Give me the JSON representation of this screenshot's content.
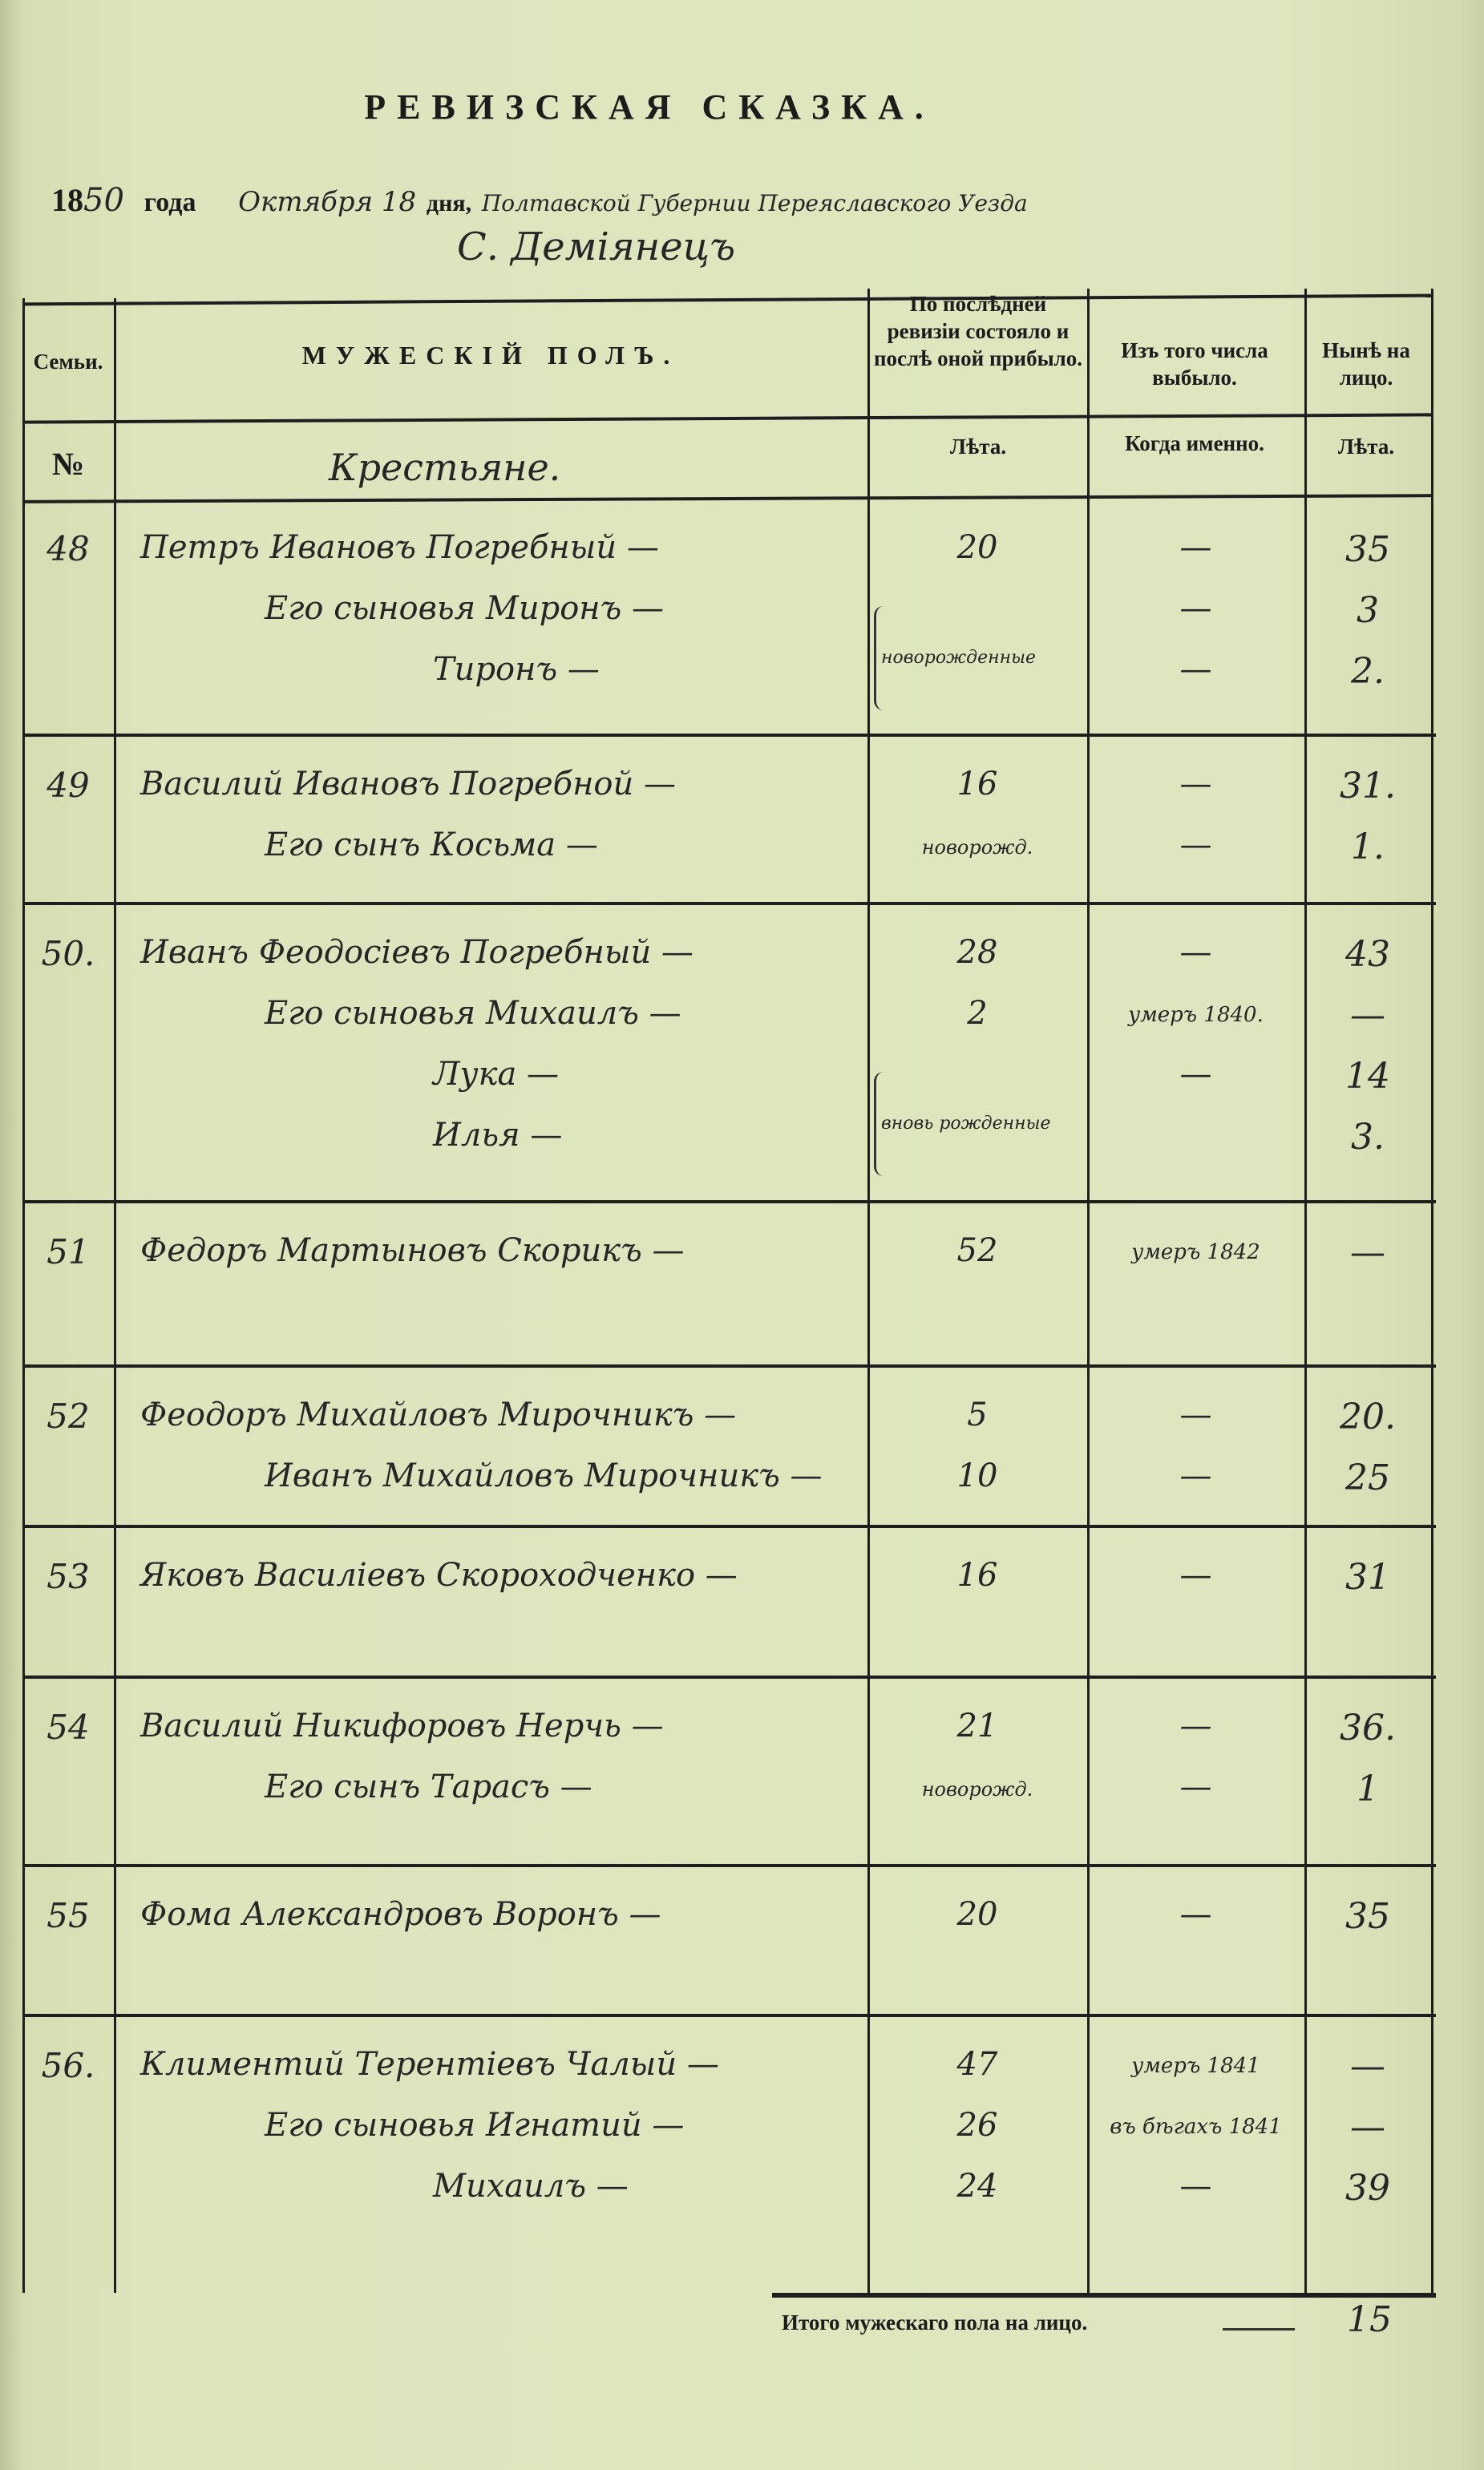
{
  "document": {
    "title": "РЕВИЗСКАЯ СКАЗКА.",
    "year_prefix": "18",
    "year_suffix": "50",
    "year_word": "года",
    "date_text": "Октября 18",
    "day_word": "дня,",
    "location_text": "Полтавской Губернии Переяславского Уезда",
    "village": "С. Демiянецъ"
  },
  "table": {
    "headers": {
      "family": "Семьи.",
      "male": "МУЖЕСКIЙ ПОЛЪ.",
      "prev": "По послѣдней ревизіи состояло и послѣ оной прибыло.",
      "removed": "Изъ того числа выбыло.",
      "now": "Нынѣ на лицо."
    },
    "subheaders": {
      "no": "№",
      "category": "Крестьяне.",
      "prev": "Лѣта.",
      "removed": "Когда именно.",
      "now": "Лѣта."
    },
    "families": [
      {
        "no": "48",
        "note": "новорожденные",
        "people": [
          {
            "name": "Петръ Ивановъ Погребный —",
            "prev": "20",
            "removed": "—",
            "now": "35",
            "indent": 0
          },
          {
            "name": "Его сыновья Миронъ —",
            "prev": "",
            "removed": "—",
            "now": "3",
            "indent": 1
          },
          {
            "name": "Тиронъ —",
            "prev": "",
            "removed": "—",
            "now": "2.",
            "indent": 2
          }
        ]
      },
      {
        "no": "49",
        "note": "",
        "people": [
          {
            "name": "Василий Ивановъ Погребной —",
            "prev": "16",
            "removed": "—",
            "now": "31.",
            "indent": 0
          },
          {
            "name": "Его сынъ Косьма —",
            "prev": "новорожд.",
            "removed": "—",
            "now": "1.",
            "indent": 1
          }
        ]
      },
      {
        "no": "50.",
        "note": "вновь рожденные",
        "people": [
          {
            "name": "Иванъ Феодосiевъ Погребный —",
            "prev": "28",
            "removed": "—",
            "now": "43",
            "indent": 0
          },
          {
            "name": "Его сыновья Михаилъ —",
            "prev": "2",
            "removed": "умеръ 1840.",
            "now": "—",
            "indent": 1
          },
          {
            "name": "Лука —",
            "prev": "",
            "removed": "—",
            "now": "14",
            "indent": 2
          },
          {
            "name": "Илья —",
            "prev": "",
            "removed": "",
            "now": "3.",
            "indent": 2
          }
        ]
      },
      {
        "no": "51",
        "note": "",
        "people": [
          {
            "name": "Федоръ Мартыновъ Скорикъ —",
            "prev": "52",
            "removed": "умеръ 1842",
            "now": "—",
            "indent": 0
          }
        ]
      },
      {
        "no": "52",
        "note": "",
        "people": [
          {
            "name": "Феодоръ Михайловъ Мирочникъ —",
            "prev": "5",
            "removed": "—",
            "now": "20.",
            "indent": 0
          },
          {
            "name": "Иванъ Михайловъ Мирочникъ —",
            "prev": "10",
            "removed": "—",
            "now": "25",
            "indent": 1
          }
        ]
      },
      {
        "no": "53",
        "note": "",
        "people": [
          {
            "name": "Яковъ Василiевъ Скороходченко —",
            "prev": "16",
            "removed": "—",
            "now": "31",
            "indent": 0
          }
        ]
      },
      {
        "no": "54",
        "note": "",
        "people": [
          {
            "name": "Василий Никифоровъ Нерчь —",
            "prev": "21",
            "removed": "—",
            "now": "36.",
            "indent": 0
          },
          {
            "name": "Его сынъ Тарасъ —",
            "prev": "новорожд.",
            "removed": "—",
            "now": "1",
            "indent": 1
          }
        ]
      },
      {
        "no": "55",
        "note": "",
        "people": [
          {
            "name": "Фома Александровъ Воронъ —",
            "prev": "20",
            "removed": "—",
            "now": "35",
            "indent": 0
          }
        ]
      },
      {
        "no": "56.",
        "note": "",
        "people": [
          {
            "name": "Климентий Терентiевъ Чалый —",
            "prev": "47",
            "removed": "умеръ 1841",
            "now": "—",
            "indent": 0
          },
          {
            "name": "Его сыновья Игнатий —",
            "prev": "26",
            "removed": "въ бѣгахъ 1841",
            "now": "—",
            "indent": 1
          },
          {
            "name": "Михаилъ —",
            "prev": "24",
            "removed": "—",
            "now": "39",
            "indent": 2
          }
        ]
      }
    ],
    "total_label": "Итого мужескаго пола на лицо.",
    "total_value": "15"
  }
}
